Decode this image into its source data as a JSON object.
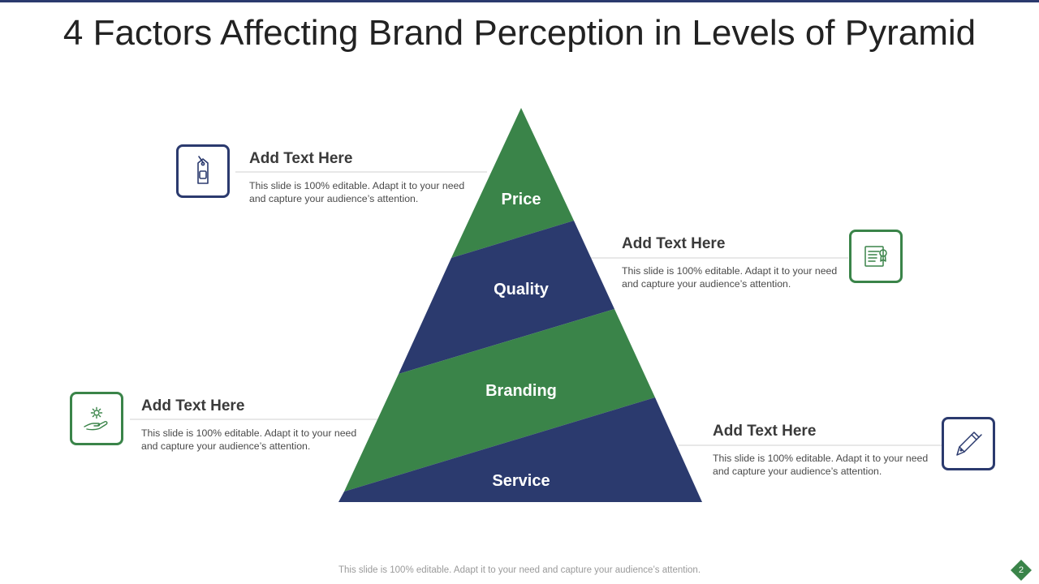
{
  "slide": {
    "title": "4 Factors Affecting Brand Perception in Levels of Pyramid",
    "footer": "This slide is 100% editable. Adapt it to your need and capture your audience’s attention.",
    "page_number": "2"
  },
  "colors": {
    "green": "#3a8449",
    "navy": "#2b3a6e",
    "accent_bar": "#2b3a6e"
  },
  "pyramid": {
    "levels": [
      {
        "label": "Price",
        "color": "green"
      },
      {
        "label": "Quality",
        "color": "navy"
      },
      {
        "label": "Branding",
        "color": "green"
      },
      {
        "label": "Service",
        "color": "navy"
      }
    ]
  },
  "callouts": [
    {
      "heading": "Add Text Here",
      "text": "This slide is 100% editable. Adapt it to your need and capture your audience’s attention.",
      "icon": "price-tag-icon",
      "border_color": "navy"
    },
    {
      "heading": "Add Text Here",
      "text": "This slide is 100% editable. Adapt it to your need and capture your audience’s attention.",
      "icon": "certificate-icon",
      "border_color": "green"
    },
    {
      "heading": "Add Text Here",
      "text": "This slide is 100% editable. Adapt it to your need and capture your audience’s attention.",
      "icon": "hand-gear-icon",
      "border_color": "green"
    },
    {
      "heading": "Add Text Here",
      "text": "This slide is 100% editable. Adapt it to your need and capture your audience’s attention.",
      "icon": "pen-icon",
      "border_color": "navy"
    }
  ]
}
